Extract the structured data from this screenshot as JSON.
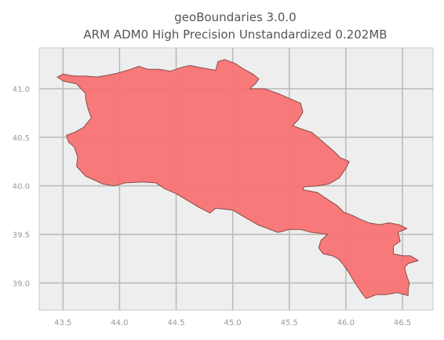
{
  "title_line1": "geoBoundaries 3.0.0",
  "title_line2": "ARM ADM0 High Precision Unstandardized 0.202MB",
  "chart_data": {
    "type": "map",
    "xlim": [
      43.29,
      46.77
    ],
    "ylim": [
      38.72,
      41.42
    ],
    "x_ticks": [
      43.5,
      44.0,
      44.5,
      45.0,
      45.5,
      46.0,
      46.5
    ],
    "x_tick_labels": [
      "43.5",
      "44.0",
      "44.5",
      "45.0",
      "45.5",
      "46.0",
      "46.5"
    ],
    "y_ticks": [
      39.0,
      39.5,
      40.0,
      40.5,
      41.0
    ],
    "y_tick_labels": [
      "39.0",
      "39.5",
      "40.0",
      "40.5",
      "41.0"
    ],
    "grid": true,
    "colors": {
      "background": "#eeeeee",
      "grid": "#b8b8b8",
      "fill": "#f87272",
      "edge": "#8a4a4a",
      "axes_frame": "#c9c9c9"
    },
    "boundary": [
      [
        43.45,
        41.12
      ],
      [
        43.5,
        41.15
      ],
      [
        43.6,
        41.13
      ],
      [
        43.7,
        41.13
      ],
      [
        43.8,
        41.12
      ],
      [
        43.9,
        41.14
      ],
      [
        43.98,
        41.16
      ],
      [
        44.1,
        41.2
      ],
      [
        44.17,
        41.23
      ],
      [
        44.25,
        41.2
      ],
      [
        44.35,
        41.2
      ],
      [
        44.45,
        41.18
      ],
      [
        44.55,
        41.22
      ],
      [
        44.62,
        41.24
      ],
      [
        44.7,
        41.22
      ],
      [
        44.8,
        41.2
      ],
      [
        44.85,
        41.19
      ],
      [
        44.87,
        41.28
      ],
      [
        44.93,
        41.3
      ],
      [
        45.02,
        41.26
      ],
      [
        45.1,
        41.2
      ],
      [
        45.18,
        41.15
      ],
      [
        45.23,
        41.1
      ],
      [
        45.2,
        41.05
      ],
      [
        45.15,
        41.0
      ],
      [
        45.28,
        41.0
      ],
      [
        45.4,
        40.95
      ],
      [
        45.5,
        40.9
      ],
      [
        45.6,
        40.85
      ],
      [
        45.62,
        40.76
      ],
      [
        45.58,
        40.68
      ],
      [
        45.53,
        40.62
      ],
      [
        45.62,
        40.58
      ],
      [
        45.7,
        40.55
      ],
      [
        45.8,
        40.45
      ],
      [
        45.9,
        40.35
      ],
      [
        45.95,
        40.29
      ],
      [
        46.03,
        40.25
      ],
      [
        46.0,
        40.18
      ],
      [
        45.94,
        40.08
      ],
      [
        45.85,
        40.02
      ],
      [
        45.75,
        40.0
      ],
      [
        45.63,
        39.99
      ],
      [
        45.62,
        39.96
      ],
      [
        45.75,
        39.93
      ],
      [
        45.85,
        39.85
      ],
      [
        45.92,
        39.8
      ],
      [
        45.98,
        39.73
      ],
      [
        46.05,
        39.7
      ],
      [
        46.12,
        39.66
      ],
      [
        46.2,
        39.62
      ],
      [
        46.3,
        39.6
      ],
      [
        46.38,
        39.62
      ],
      [
        46.47,
        39.6
      ],
      [
        46.54,
        39.56
      ],
      [
        46.46,
        39.52
      ],
      [
        46.48,
        39.43
      ],
      [
        46.42,
        39.38
      ],
      [
        46.42,
        39.3
      ],
      [
        46.5,
        39.28
      ],
      [
        46.57,
        39.28
      ],
      [
        46.64,
        39.23
      ],
      [
        46.55,
        39.2
      ],
      [
        46.52,
        39.16
      ],
      [
        46.53,
        39.1
      ],
      [
        46.56,
        39.0
      ],
      [
        46.55,
        38.93
      ],
      [
        46.55,
        38.87
      ],
      [
        46.45,
        38.9
      ],
      [
        46.35,
        38.88
      ],
      [
        46.27,
        38.88
      ],
      [
        46.18,
        38.84
      ],
      [
        46.15,
        38.88
      ],
      [
        46.11,
        38.95
      ],
      [
        46.07,
        39.02
      ],
      [
        46.03,
        39.1
      ],
      [
        46.0,
        39.15
      ],
      [
        45.97,
        39.2
      ],
      [
        45.93,
        39.25
      ],
      [
        45.88,
        39.28
      ],
      [
        45.8,
        39.3
      ],
      [
        45.76,
        39.36
      ],
      [
        45.78,
        39.44
      ],
      [
        45.84,
        39.5
      ],
      [
        45.7,
        39.52
      ],
      [
        45.6,
        39.55
      ],
      [
        45.5,
        39.55
      ],
      [
        45.4,
        39.52
      ],
      [
        45.33,
        39.55
      ],
      [
        45.22,
        39.6
      ],
      [
        45.1,
        39.68
      ],
      [
        45.0,
        39.75
      ],
      [
        44.85,
        39.77
      ],
      [
        44.8,
        39.72
      ],
      [
        44.7,
        39.78
      ],
      [
        44.6,
        39.85
      ],
      [
        44.5,
        39.92
      ],
      [
        44.4,
        39.97
      ],
      [
        44.32,
        40.03
      ],
      [
        44.2,
        40.04
      ],
      [
        44.05,
        40.03
      ],
      [
        43.95,
        40.0
      ],
      [
        43.85,
        40.02
      ],
      [
        43.7,
        40.1
      ],
      [
        43.62,
        40.2
      ],
      [
        43.63,
        40.3
      ],
      [
        43.6,
        40.4
      ],
      [
        43.55,
        40.45
      ],
      [
        43.53,
        40.52
      ],
      [
        43.6,
        40.55
      ],
      [
        43.68,
        40.6
      ],
      [
        43.75,
        40.7
      ],
      [
        43.72,
        40.8
      ],
      [
        43.7,
        40.9
      ],
      [
        43.7,
        40.95
      ],
      [
        43.62,
        41.05
      ],
      [
        43.5,
        41.08
      ]
    ]
  }
}
